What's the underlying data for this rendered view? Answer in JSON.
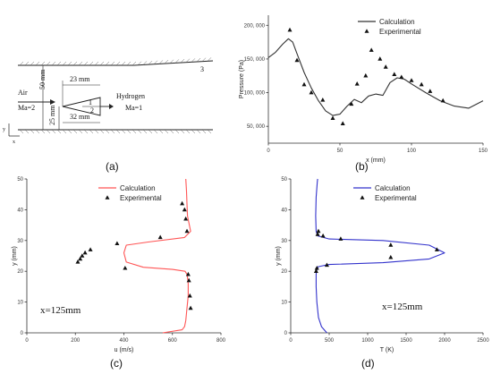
{
  "panel_labels": [
    "(a)",
    "(b)",
    "(c)",
    "(d)"
  ],
  "schematic": {
    "air_label": "Air",
    "air_mach": "Ma=2",
    "hydrogen_label": "Hydrogen",
    "hydrogen_mach": "Ma=1",
    "dim_23": "23 mm",
    "dim_50": "50 mm",
    "dim_25": "25 mm",
    "dim_32": "32 mm",
    "mark_1": "1",
    "mark_2": "2",
    "mark_3": "3",
    "axis_x": "x",
    "axis_y": "y"
  },
  "chart_data": [
    {
      "panel": "(b)",
      "type": "line",
      "xlabel": "x (mm)",
      "ylabel": "Pressure (Pa)",
      "xlim": [
        0,
        150
      ],
      "ylim": [
        25000,
        215000
      ],
      "xticks": [
        0,
        50,
        100,
        150
      ],
      "yticks": [
        50000,
        100000,
        150000,
        200000
      ],
      "ytick_labels": [
        "50, 000",
        "100, 000",
        "150, 000",
        "200, 000"
      ],
      "legend_position": "top-right",
      "series": [
        {
          "name": "Calculation",
          "style": "line",
          "color": "#333333",
          "x": [
            0,
            5,
            10,
            14,
            17,
            20,
            25,
            30,
            35,
            40,
            45,
            50,
            55,
            60,
            65,
            70,
            75,
            80,
            85,
            90,
            95,
            100,
            110,
            120,
            130,
            140,
            150
          ],
          "y": [
            152000,
            160000,
            172000,
            180000,
            175000,
            158000,
            130000,
            107000,
            88000,
            73000,
            66000,
            68000,
            80000,
            90000,
            85000,
            95000,
            98000,
            96000,
            115000,
            122000,
            120000,
            113000,
            100000,
            88000,
            80000,
            77000,
            88000
          ]
        },
        {
          "name": "Experimental",
          "style": "triangle",
          "color": "#111111",
          "x": [
            15,
            20,
            25,
            30,
            38,
            45,
            52,
            58,
            62,
            68,
            72,
            78,
            82,
            88,
            93,
            100,
            107,
            113,
            122
          ],
          "y": [
            193000,
            148000,
            112000,
            100000,
            89000,
            62000,
            54000,
            83000,
            113000,
            125000,
            163000,
            150000,
            138000,
            127000,
            123000,
            118000,
            112000,
            102000,
            88000
          ]
        }
      ]
    },
    {
      "panel": "(c)",
      "type": "line",
      "xlabel": "u (m/s)",
      "ylabel": "y (mm)",
      "annotation": "x=125mm",
      "xlim": [
        0,
        800
      ],
      "ylim": [
        0,
        50
      ],
      "xticks": [
        0,
        200,
        400,
        600,
        800
      ],
      "yticks": [
        0,
        10,
        20,
        30,
        40,
        50
      ],
      "legend_position": "top-right",
      "series": [
        {
          "name": "Calculation",
          "style": "line",
          "color": "#ff5555",
          "x": [
            560,
            640,
            650,
            655,
            660,
            665,
            665,
            662,
            660,
            652,
            600,
            480,
            410,
            400,
            410,
            500,
            650,
            675,
            670,
            662,
            660,
            658,
            655
          ],
          "y": [
            0,
            1,
            2,
            4,
            8,
            12,
            16,
            18,
            19,
            20,
            20.6,
            21.3,
            23,
            26,
            28.5,
            29.5,
            31,
            33,
            35,
            38,
            42,
            46,
            50
          ]
        },
        {
          "name": "Experimental",
          "style": "triangle",
          "color": "#111111",
          "x": [
            210,
            220,
            228,
            240,
            262,
            372,
            405,
            550,
            640,
            650,
            655,
            660,
            665,
            668,
            672,
            675
          ],
          "y": [
            23,
            24,
            25,
            26,
            27,
            29,
            21,
            31,
            42,
            40,
            37,
            33,
            19,
            17,
            12,
            8
          ]
        }
      ]
    },
    {
      "panel": "(d)",
      "type": "line",
      "xlabel": "T (K)",
      "ylabel": "y (mm)",
      "annotation": "x=125mm",
      "xlim": [
        0,
        2500
      ],
      "ylim": [
        0,
        50
      ],
      "xticks": [
        0,
        500,
        1000,
        1500,
        2000,
        2500
      ],
      "yticks": [
        0,
        10,
        20,
        30,
        40,
        50
      ],
      "legend_position": "top-right",
      "series": [
        {
          "name": "Calculation",
          "style": "line",
          "color": "#3333cc",
          "x": [
            470,
            400,
            360,
            340,
            330,
            330,
            335,
            345,
            360,
            500,
            1200,
            1800,
            2000,
            1800,
            1200,
            500,
            350,
            330,
            325,
            330,
            345,
            350
          ],
          "y": [
            0,
            2,
            5,
            10,
            15,
            19,
            20,
            21,
            21.5,
            22.2,
            22.8,
            24,
            26,
            28.5,
            30,
            30.5,
            31.5,
            33,
            38,
            44,
            49,
            50
          ]
        },
        {
          "name": "Experimental",
          "style": "triangle",
          "color": "#111111",
          "x": [
            330,
            340,
            350,
            360,
            420,
            470,
            650,
            1300,
            1300,
            1900
          ],
          "y": [
            20,
            21,
            32,
            33,
            31.5,
            22,
            30.5,
            28.5,
            24.5,
            27
          ]
        }
      ]
    }
  ]
}
